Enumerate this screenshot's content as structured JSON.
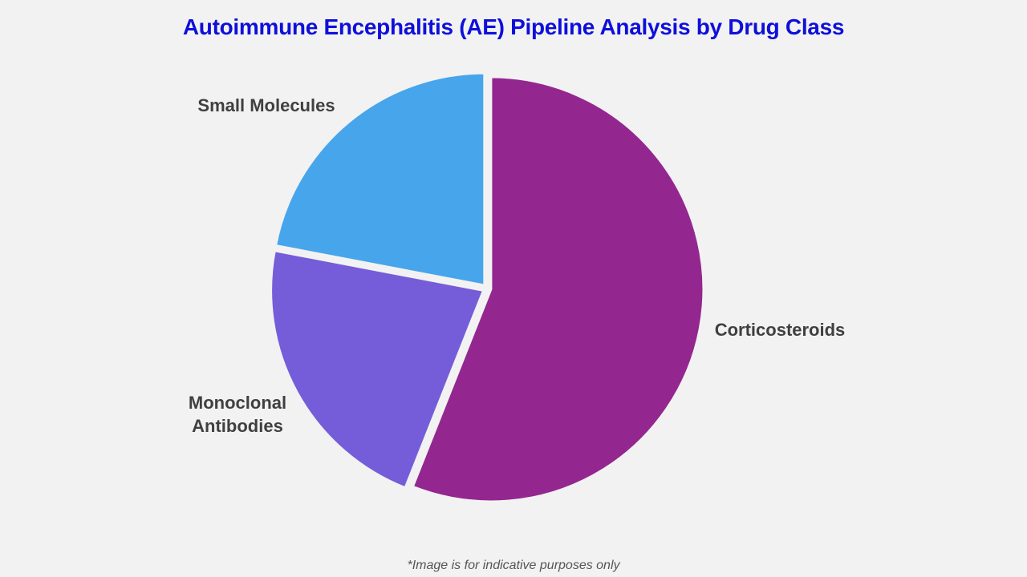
{
  "title": "Autoimmune Encephalitis (AE) Pipeline Analysis by Drug Class",
  "footnote": "*Image is for indicative purposes only",
  "colors": {
    "title": "#0f0fdb",
    "background": "#f2f2f2"
  },
  "chart_data": {
    "type": "pie",
    "title": "Autoimmune Encephalitis (AE) Pipeline Analysis by Drug Class",
    "categories": [
      "Corticosteroids",
      "Monoclonal Antibodies",
      "Small Molecules"
    ],
    "values": [
      56,
      22,
      22
    ],
    "colors": [
      "#93278f",
      "#755dd9",
      "#47a5eb"
    ],
    "labels": {
      "corticosteroids": "Corticosteroids",
      "monoclonal_line1": "Monoclonal",
      "monoclonal_line2": "Antibodies",
      "small_molecules": "Small Molecules"
    },
    "start_angle_deg": 0,
    "direction": "clockwise",
    "legend": "none (direct labels)"
  }
}
